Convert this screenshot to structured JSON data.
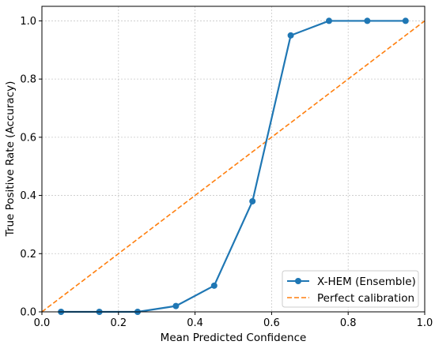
{
  "chart_data": {
    "type": "line",
    "title": "",
    "xlabel": "Mean Predicted Confidence",
    "ylabel": "True Positive Rate (Accuracy)",
    "xlim": [
      0.0,
      1.0
    ],
    "ylim": [
      0.0,
      1.05
    ],
    "xticks": [
      "0.0",
      "0.2",
      "0.4",
      "0.6",
      "0.8",
      "1.0"
    ],
    "yticks": [
      "0.0",
      "0.2",
      "0.4",
      "0.6",
      "0.8",
      "1.0"
    ],
    "grid": true,
    "legend_position": "lower-right",
    "series": [
      {
        "name": "X-HEM (Ensemble)",
        "style": "solid-line-circle-markers",
        "color": "#1f77b4",
        "x": [
          0.05,
          0.15,
          0.25,
          0.35,
          0.45,
          0.55,
          0.65,
          0.75,
          0.85,
          0.95
        ],
        "y": [
          0.0,
          0.0,
          0.0,
          0.02,
          0.09,
          0.38,
          0.95,
          1.0,
          1.0,
          1.0
        ]
      },
      {
        "name": "Perfect calibration",
        "style": "dashed-line",
        "color": "#ff7f0e",
        "x": [
          0.0,
          1.0
        ],
        "y": [
          0.0,
          1.0
        ]
      }
    ]
  }
}
